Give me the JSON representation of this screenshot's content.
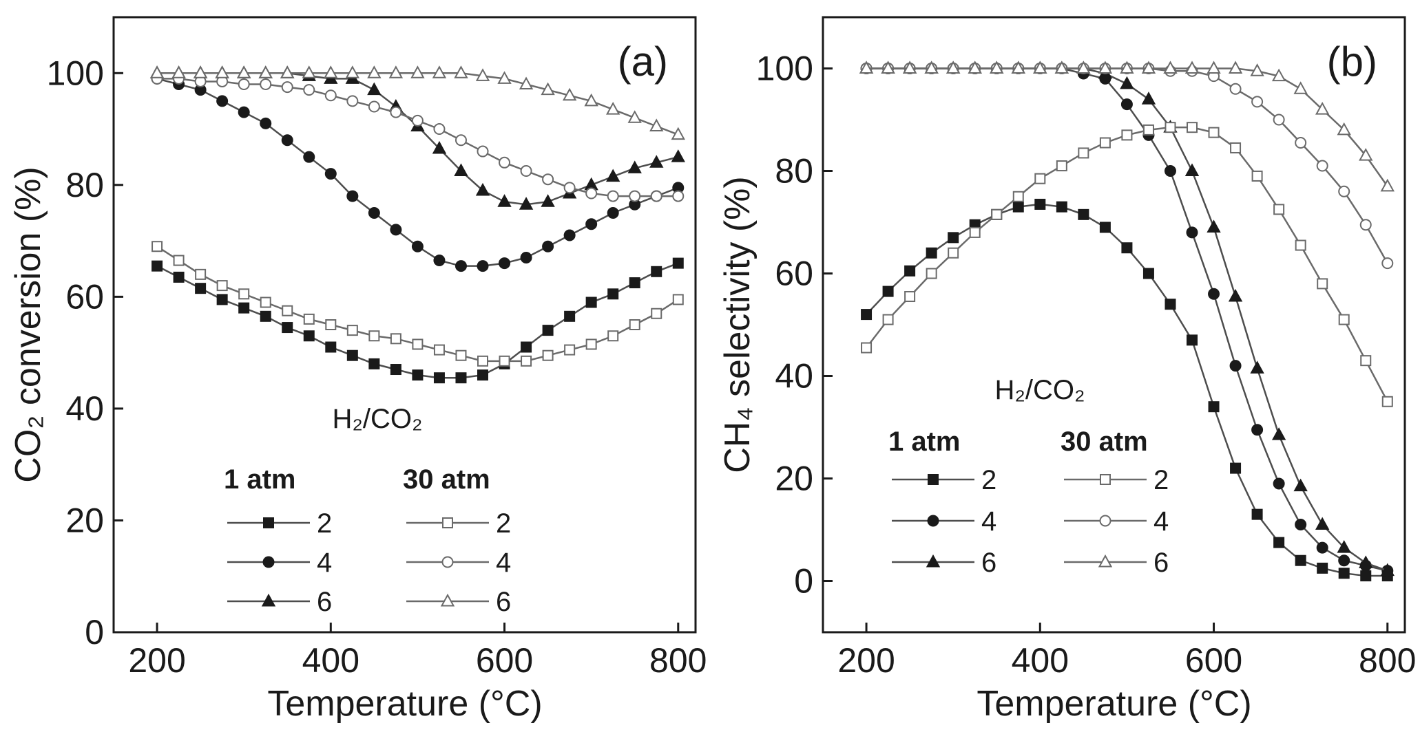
{
  "chart_data": [
    {
      "type": "line",
      "panel_label": "(a)",
      "title": "",
      "xlabel": "Temperature (°C)",
      "ylabel": "CO₂ conversion (%)",
      "xlim": [
        150,
        820
      ],
      "ylim": [
        0,
        110
      ],
      "xticks": [
        200,
        400,
        600,
        800
      ],
      "yticks": [
        0,
        20,
        40,
        60,
        80,
        100
      ],
      "legend": {
        "position": "bottom-center",
        "header": "H₂/CO₂",
        "group_titles": [
          "1 atm",
          "30 atm"
        ]
      },
      "x": [
        200,
        225,
        250,
        275,
        300,
        325,
        350,
        375,
        400,
        425,
        450,
        475,
        500,
        525,
        550,
        575,
        600,
        625,
        650,
        675,
        700,
        725,
        750,
        775,
        800
      ],
      "series": [
        {
          "name": "2",
          "group": "1 atm",
          "marker": "square",
          "filled": true,
          "values": [
            65.5,
            63.5,
            61.5,
            59.5,
            58,
            56.5,
            54.5,
            53,
            51,
            49.5,
            48,
            47,
            46,
            45.5,
            45.5,
            46,
            48,
            51,
            54,
            56.5,
            59,
            60.5,
            62.5,
            64.5,
            66
          ]
        },
        {
          "name": "4",
          "group": "1 atm",
          "marker": "circle",
          "filled": true,
          "values": [
            99,
            98,
            97,
            95,
            93,
            91,
            88,
            85,
            82,
            78,
            75,
            72,
            69,
            66.5,
            65.5,
            65.5,
            66,
            67,
            69,
            71,
            73,
            75,
            76.5,
            78,
            79.5
          ]
        },
        {
          "name": "6",
          "group": "1 atm",
          "marker": "triangle",
          "filled": true,
          "values": [
            100,
            100,
            100,
            100,
            100,
            100,
            100,
            99.5,
            99,
            99,
            97,
            94,
            90.5,
            86.5,
            82.5,
            79,
            77,
            76.5,
            77,
            78.5,
            80,
            81.5,
            83,
            84,
            85
          ]
        },
        {
          "name": "2",
          "group": "30 atm",
          "marker": "square",
          "filled": false,
          "values": [
            69,
            66.5,
            64,
            62,
            60.5,
            59,
            57.5,
            56,
            55,
            54,
            53,
            52.5,
            51.5,
            50.5,
            49.5,
            48.5,
            48.5,
            48.5,
            49.5,
            50.5,
            51.5,
            53,
            55,
            57,
            59.5
          ]
        },
        {
          "name": "4",
          "group": "30 atm",
          "marker": "circle",
          "filled": false,
          "values": [
            99,
            99,
            98.5,
            98.5,
            98,
            98,
            97.5,
            97,
            96,
            95,
            94,
            93,
            91.5,
            90,
            88,
            86,
            84,
            82.5,
            81,
            79.5,
            78.5,
            78,
            78,
            78,
            78
          ]
        },
        {
          "name": "6",
          "group": "30 atm",
          "marker": "triangle",
          "filled": false,
          "values": [
            100,
            100,
            100,
            100,
            100,
            100,
            100,
            100,
            100,
            100,
            100,
            100,
            100,
            100,
            100,
            99.5,
            99,
            98,
            97,
            96,
            95,
            93.5,
            92,
            90.5,
            89
          ]
        }
      ]
    },
    {
      "type": "line",
      "panel_label": "(b)",
      "title": "",
      "xlabel": "Temperature (°C)",
      "ylabel": "CH₄ selectivity (%)",
      "xlim": [
        150,
        820
      ],
      "ylim": [
        -10,
        110
      ],
      "xticks": [
        200,
        400,
        600,
        800
      ],
      "yticks": [
        0,
        20,
        40,
        60,
        80,
        100
      ],
      "legend": {
        "position": "bottom-center",
        "header": "H₂/CO₂",
        "group_titles": [
          "1 atm",
          "30 atm"
        ]
      },
      "x": [
        200,
        225,
        250,
        275,
        300,
        325,
        350,
        375,
        400,
        425,
        450,
        475,
        500,
        525,
        550,
        575,
        600,
        625,
        650,
        675,
        700,
        725,
        750,
        775,
        800
      ],
      "series": [
        {
          "name": "2",
          "group": "1 atm",
          "marker": "square",
          "filled": true,
          "values": [
            52,
            56.5,
            60.5,
            64,
            67,
            69.5,
            71.5,
            73,
            73.5,
            73,
            71.5,
            69,
            65,
            60,
            54,
            47,
            34,
            22,
            13,
            7.5,
            4,
            2.5,
            1.5,
            1,
            1
          ]
        },
        {
          "name": "4",
          "group": "1 atm",
          "marker": "circle",
          "filled": true,
          "values": [
            100,
            100,
            100,
            100,
            100,
            100,
            100,
            100,
            100,
            100,
            99,
            98,
            93,
            87,
            80,
            68,
            56,
            42,
            29.5,
            19,
            11,
            6.5,
            4,
            3,
            2
          ]
        },
        {
          "name": "6",
          "group": "1 atm",
          "marker": "triangle",
          "filled": true,
          "values": [
            100,
            100,
            100,
            100,
            100,
            100,
            100,
            100,
            100,
            100,
            100,
            99,
            97,
            94,
            88.5,
            80,
            69,
            55.5,
            41.5,
            28.5,
            18.5,
            11,
            6.5,
            3.5,
            2
          ]
        },
        {
          "name": "2",
          "group": "30 atm",
          "marker": "square",
          "filled": false,
          "values": [
            45.5,
            51,
            55.5,
            60,
            64,
            68,
            71.5,
            75,
            78.5,
            81,
            83.5,
            85.5,
            87,
            88,
            88.5,
            88.5,
            87.5,
            84.5,
            79,
            72.5,
            65.5,
            58,
            51,
            43,
            35
          ]
        },
        {
          "name": "4",
          "group": "30 atm",
          "marker": "circle",
          "filled": false,
          "values": [
            100,
            100,
            100,
            100,
            100,
            100,
            100,
            100,
            100,
            100,
            100,
            100,
            100,
            100,
            99.5,
            99.5,
            98.5,
            96,
            93.5,
            90,
            85.5,
            81,
            76,
            69.5,
            62
          ]
        },
        {
          "name": "6",
          "group": "30 atm",
          "marker": "triangle",
          "filled": false,
          "values": [
            100,
            100,
            100,
            100,
            100,
            100,
            100,
            100,
            100,
            100,
            100,
            100,
            100,
            100,
            100,
            100,
            100,
            100,
            99.5,
            98.5,
            96,
            92,
            88,
            83,
            77
          ]
        }
      ]
    }
  ]
}
